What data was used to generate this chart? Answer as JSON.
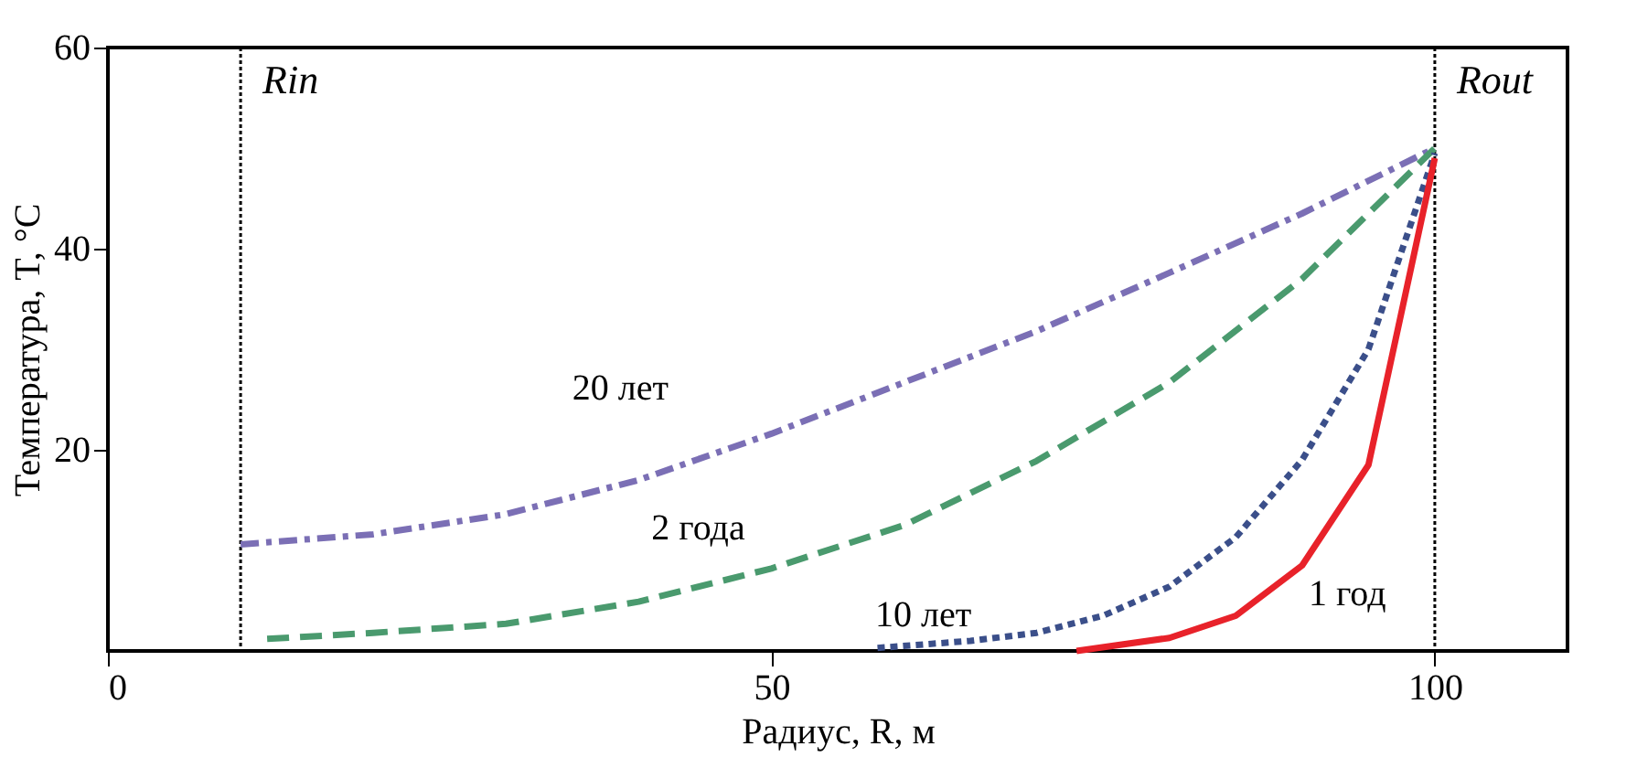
{
  "chart_data": {
    "type": "line",
    "xlabel": "Радиус, R, м",
    "ylabel": "Температура, T, °C",
    "xlim": [
      0,
      110
    ],
    "xticks": [
      0,
      50,
      100
    ],
    "ylim": [
      0,
      60
    ],
    "yticks": [
      20,
      40,
      60
    ],
    "grid": false,
    "legend": false,
    "marker": "none",
    "series": [
      {
        "name": "20 лет",
        "color": "#7b6fb5",
        "line_style": "dashdot",
        "x": [
          10,
          20,
          30,
          40,
          50,
          60,
          70,
          80,
          90,
          100
        ],
        "values": [
          10.6,
          11.6,
          13.6,
          17,
          21.6,
          26.7,
          31.8,
          37.6,
          43.5,
          50
        ]
      },
      {
        "name": "2 года",
        "color": "#4a9a6e",
        "line_style": "dashed",
        "x": [
          12,
          20,
          30,
          40,
          50,
          60,
          70,
          80,
          90,
          100
        ],
        "values": [
          1.2,
          1.8,
          2.7,
          4.9,
          8.2,
          12.5,
          18.9,
          26.7,
          37,
          50
        ]
      },
      {
        "name": "10 лет",
        "color": "#3b4f8a",
        "line_style": "dotted",
        "x": [
          58,
          65,
          70,
          75,
          80,
          85,
          90,
          95,
          100
        ],
        "values": [
          0.3,
          1,
          1.8,
          3.5,
          6.4,
          11.3,
          19,
          30,
          49.5
        ]
      },
      {
        "name": "1 год",
        "color": "#e8222a",
        "line_style": "solid",
        "x": [
          73,
          80,
          85,
          90,
          95,
          100
        ],
        "values": [
          0,
          1.3,
          3.5,
          8.5,
          18.5,
          49
        ]
      }
    ],
    "ref_lines": [
      {
        "axis": "x",
        "value": 10,
        "label": "Rin",
        "color": "#000000",
        "line_style": "dotted"
      },
      {
        "axis": "x",
        "value": 100,
        "label": "Rout",
        "color": "#000000",
        "line_style": "dotted"
      }
    ]
  }
}
